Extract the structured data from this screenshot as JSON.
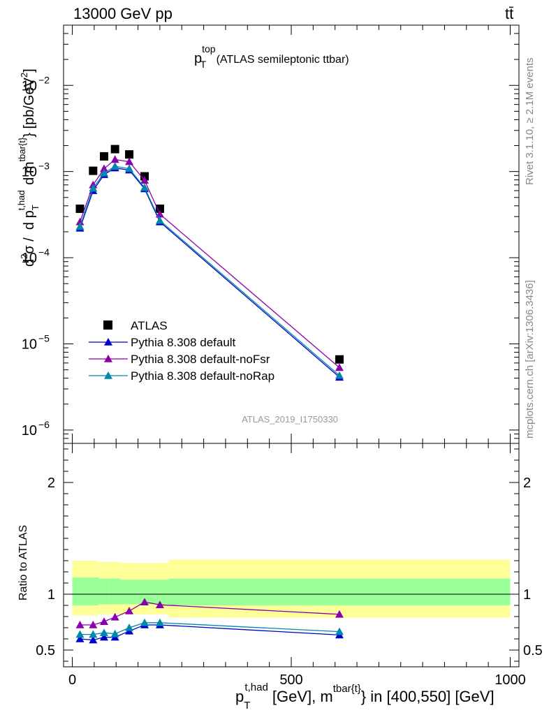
{
  "header": {
    "energy_label": "13000 GeV pp",
    "process_label": "tt̄"
  },
  "side_labels": {
    "rivet": "Rivet 3.1.10, ≥ 2.1M events",
    "mcplots": "mcplots.cern.ch [arXiv:1306.3436]"
  },
  "analysis_id": "ATLAS_2019_I1750330",
  "chart_data": [
    {
      "type": "scatter",
      "panel": "main",
      "title": {
        "base": "p",
        "sup": "top",
        "sub": "T",
        "rest": " (ATLAS semileptonic ttbar)"
      },
      "ylabel": "d²σ / d p_T^{t,had} d m^{tbar{t}} [pb/GeV²]",
      "yscale": "log",
      "ylim": [
        7e-07,
        0.05
      ],
      "xlim": [
        -20,
        1020
      ],
      "y_ticks": [
        {
          "value": 1e-06,
          "exp": "−6"
        },
        {
          "value": 1e-05,
          "exp": "−5"
        },
        {
          "value": 0.0001,
          "exp": "−4"
        },
        {
          "value": 0.001,
          "exp": "−3"
        },
        {
          "value": 0.01,
          "exp": "−2"
        }
      ],
      "legend_position": "center-left",
      "series": [
        {
          "name": "ATLAS",
          "color": "#000000",
          "marker": "square",
          "line": false,
          "x": [
            17.5,
            47.5,
            72.5,
            97.5,
            130,
            165,
            200,
            610
          ],
          "y": [
            0.00037,
            0.00102,
            0.0015,
            0.00182,
            0.00158,
            0.00088,
            0.00037,
            6.6e-06
          ],
          "band_edges": [
            0,
            35,
            60,
            85,
            110,
            150,
            180,
            220,
            1000
          ],
          "band_yellow": [
            [
              0.81,
              1.3
            ],
            [
              0.81,
              1.3
            ],
            [
              0.82,
              1.29
            ],
            [
              0.82,
              1.29
            ],
            [
              0.82,
              1.28
            ],
            [
              0.82,
              1.28
            ],
            [
              0.82,
              1.28
            ],
            [
              0.79,
              1.31
            ]
          ],
          "band_green": [
            [
              0.9,
              1.15
            ],
            [
              0.9,
              1.15
            ],
            [
              0.91,
              1.14
            ],
            [
              0.91,
              1.14
            ],
            [
              0.91,
              1.13
            ],
            [
              0.91,
              1.13
            ],
            [
              0.91,
              1.13
            ],
            [
              0.9,
              1.14
            ]
          ]
        },
        {
          "name": "Pythia 8.308 default",
          "color": "#0000cc",
          "marker": "triangle",
          "line": true,
          "x": [
            17.5,
            47.5,
            72.5,
            97.5,
            130,
            165,
            200,
            610
          ],
          "y": [
            0.00022,
            0.0006,
            0.00092,
            0.0011,
            0.00104,
            0.00063,
            0.00026,
            4.1e-06
          ]
        },
        {
          "name": "Pythia 8.308 default-noFsr",
          "color": "#8b00aa",
          "marker": "triangle",
          "line": true,
          "x": [
            17.5,
            47.5,
            72.5,
            97.5,
            130,
            165,
            200,
            610
          ],
          "y": [
            0.00026,
            0.0007,
            0.00108,
            0.00138,
            0.0013,
            0.00079,
            0.00032,
            5.3e-06
          ]
        },
        {
          "name": "Pythia 8.308 default-noRap",
          "color": "#0088aa",
          "marker": "triangle",
          "line": true,
          "x": [
            17.5,
            47.5,
            72.5,
            97.5,
            130,
            165,
            200,
            610
          ],
          "y": [
            0.00023,
            0.00064,
            0.00096,
            0.00115,
            0.00108,
            0.00065,
            0.00027,
            4.3e-06
          ]
        }
      ]
    },
    {
      "type": "line",
      "panel": "ratio",
      "ylabel": "Ratio to ATLAS",
      "ylim": [
        0.35,
        2.35
      ],
      "xlim": [
        -20,
        1020
      ],
      "y_ticks": [
        "0.5",
        "1",
        "2"
      ],
      "y_tick_values": [
        0.5,
        1,
        2
      ],
      "x_ticks": [
        "0",
        "500",
        "1000"
      ],
      "x_tick_values": [
        0,
        500,
        1000
      ],
      "xlabel": "p_T^{t,had} [GeV], m^{tbar{t}} in [400,550] [GeV]",
      "series": [
        {
          "name": "Pythia 8.308 default",
          "color": "#0000cc",
          "x": [
            17.5,
            47.5,
            72.5,
            97.5,
            130,
            165,
            200,
            610
          ],
          "y": [
            0.6,
            0.59,
            0.615,
            0.615,
            0.67,
            0.725,
            0.725,
            0.635
          ]
        },
        {
          "name": "Pythia 8.308 default-noFsr",
          "color": "#8b00aa",
          "x": [
            17.5,
            47.5,
            72.5,
            97.5,
            130,
            165,
            200,
            610
          ],
          "y": [
            0.725,
            0.725,
            0.755,
            0.795,
            0.85,
            0.93,
            0.905,
            0.82
          ]
        },
        {
          "name": "Pythia 8.308 default-noRap",
          "color": "#0088aa",
          "x": [
            17.5,
            47.5,
            72.5,
            97.5,
            130,
            165,
            200,
            610
          ],
          "y": [
            0.64,
            0.64,
            0.655,
            0.645,
            0.7,
            0.745,
            0.745,
            0.665
          ]
        }
      ]
    }
  ]
}
